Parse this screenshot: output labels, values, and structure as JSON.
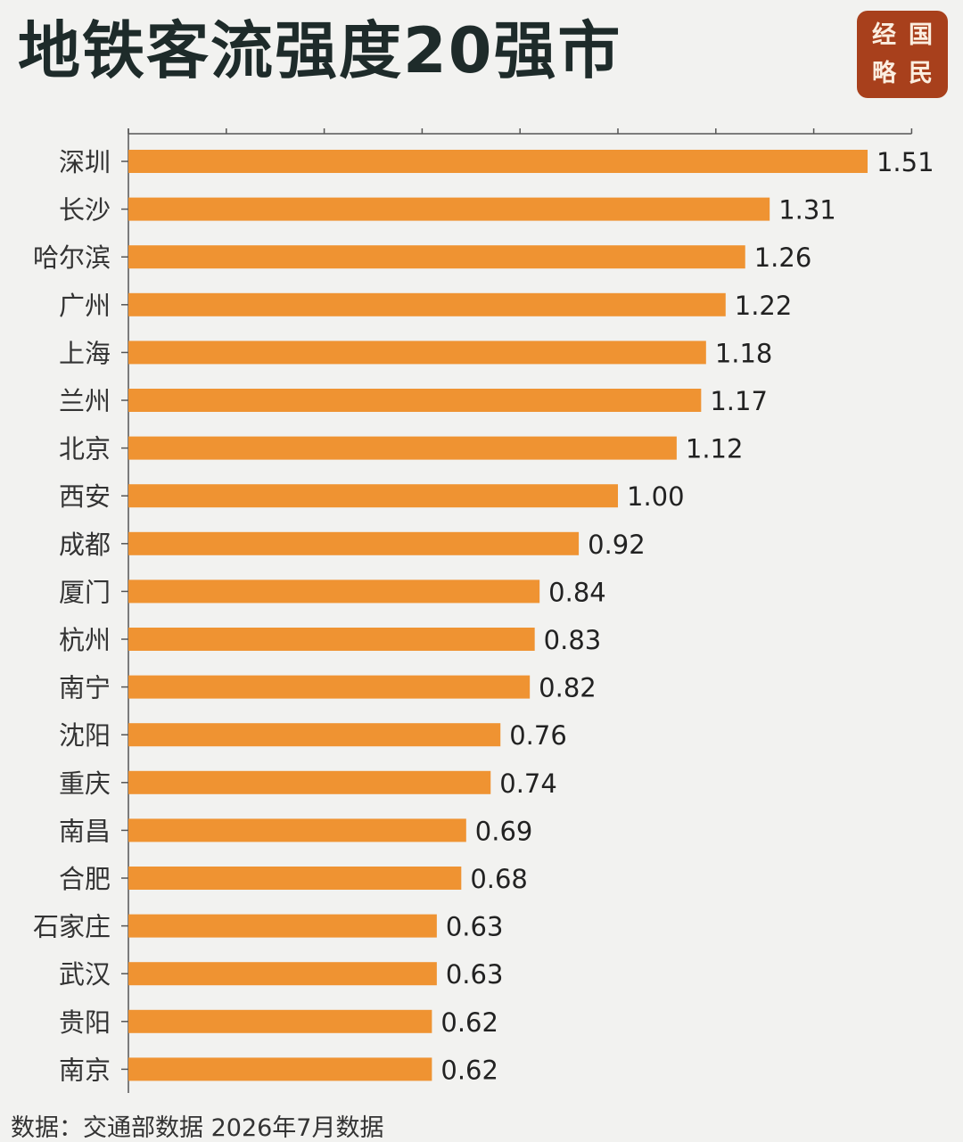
{
  "title": "地铁客流强度20强市",
  "logo": {
    "chars": [
      "经",
      "国",
      "略",
      "民"
    ]
  },
  "source": "数据：交通部数据 2026年7月数据",
  "colors": {
    "bar": "#ef9332",
    "title": "#1e2b2a",
    "logo_bg": "#a8401c",
    "axis": "#555555"
  },
  "chart_data": {
    "type": "bar",
    "orientation": "horizontal",
    "categories": [
      "深圳",
      "长沙",
      "哈尔滨",
      "广州",
      "上海",
      "兰州",
      "北京",
      "西安",
      "成都",
      "厦门",
      "杭州",
      "南宁",
      "沈阳",
      "重庆",
      "南昌",
      "合肥",
      "石家庄",
      "武汉",
      "贵阳",
      "南京"
    ],
    "values": [
      1.51,
      1.31,
      1.26,
      1.22,
      1.18,
      1.17,
      1.12,
      1.0,
      0.92,
      0.84,
      0.83,
      0.82,
      0.76,
      0.74,
      0.69,
      0.68,
      0.63,
      0.63,
      0.62,
      0.62
    ],
    "value_labels": [
      "1.51",
      "1.31",
      "1.26",
      "1.22",
      "1.18",
      "1.17",
      "1.12",
      "1.00",
      "0.92",
      "0.84",
      "0.83",
      "0.82",
      "0.76",
      "0.74",
      "0.69",
      "0.68",
      "0.63",
      "0.63",
      "0.62",
      "0.62"
    ],
    "xlim": [
      0,
      1.6
    ],
    "x_tick_interval": 0.2,
    "x_tick_labels_visible": false,
    "gridlines": false,
    "legend": "none",
    "title": "地铁客流强度20强市"
  }
}
